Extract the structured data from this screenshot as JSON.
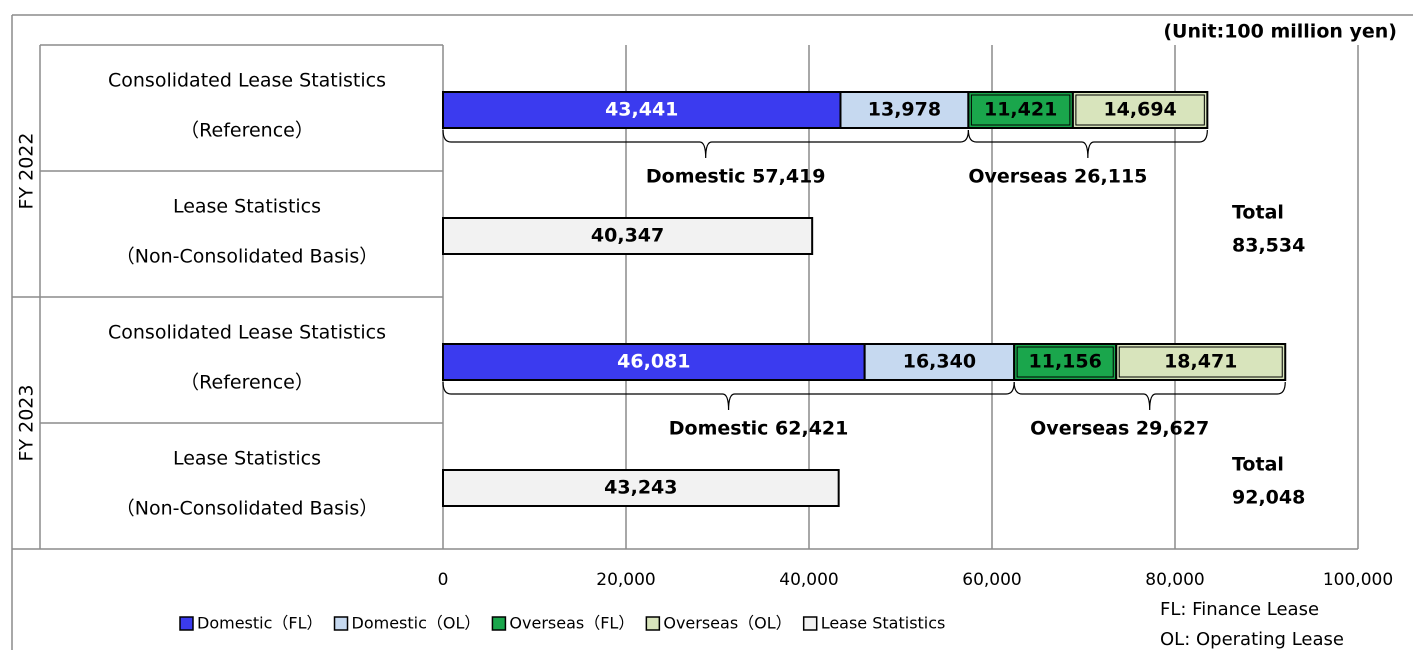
{
  "chart_data": {
    "type": "stacked-barh",
    "unit": "(Unit:100 million yen)",
    "groups": [
      "FY 2022",
      "FY 2023"
    ],
    "categories": [
      [
        "Consolidated Lease Statistics",
        "（Reference）"
      ],
      [
        "Lease Statistics",
        "（Non-Consolidated Basis）"
      ],
      [
        "Consolidated Lease Statistics",
        "（Reference）"
      ],
      [
        "Lease Statistics",
        "（Non-Consolidated Basis）"
      ]
    ],
    "series": [
      {
        "name": "Domestic（FL）",
        "color": "#3b3bef",
        "values": [
          43441,
          null,
          46081,
          null
        ],
        "value_labels": [
          "43,441",
          null,
          "46,081",
          null
        ]
      },
      {
        "name": "Domestic（OL）",
        "color": "#c6d9f0",
        "values": [
          13978,
          null,
          16340,
          null
        ],
        "value_labels": [
          "13,978",
          null,
          "16,340",
          null
        ]
      },
      {
        "name": "Overseas（FL）",
        "color": "#1aa64c",
        "values": [
          11421,
          null,
          11156,
          null
        ],
        "value_labels": [
          "11,421",
          null,
          "11,156",
          null
        ]
      },
      {
        "name": "Overseas（OL）",
        "color": "#d8e4bc",
        "values": [
          14694,
          null,
          18471,
          null
        ],
        "value_labels": [
          "14,694",
          null,
          "18,471",
          null
        ]
      },
      {
        "name": "Lease Statistics",
        "color": "#f2f2f2",
        "values": [
          null,
          40347,
          null,
          43243
        ],
        "value_labels": [
          null,
          "40,347",
          null,
          "43,243"
        ]
      }
    ],
    "annotations": [
      {
        "domestic": "Domestic 57,419",
        "overseas": "Overseas 26,115",
        "total_title": "Total",
        "total": "83,534"
      },
      {
        "domestic": "Domestic 62,421",
        "overseas": "Overseas 29,627",
        "total_title": "Total",
        "total": "92,048"
      }
    ],
    "notes": [
      "FL: Finance Lease",
      "OL: Operating Lease"
    ],
    "xlim": [
      0,
      100000
    ],
    "xticks": [
      0,
      {
        "value": 20000,
        "label": "20,000"
      },
      {
        "value": 40000,
        "label": "40,000"
      },
      {
        "value": 60000,
        "label": "60,000"
      },
      {
        "value": 80000,
        "label": "80,000"
      },
      {
        "value": 100000,
        "label": "100,000"
      }
    ],
    "grid": true
  }
}
